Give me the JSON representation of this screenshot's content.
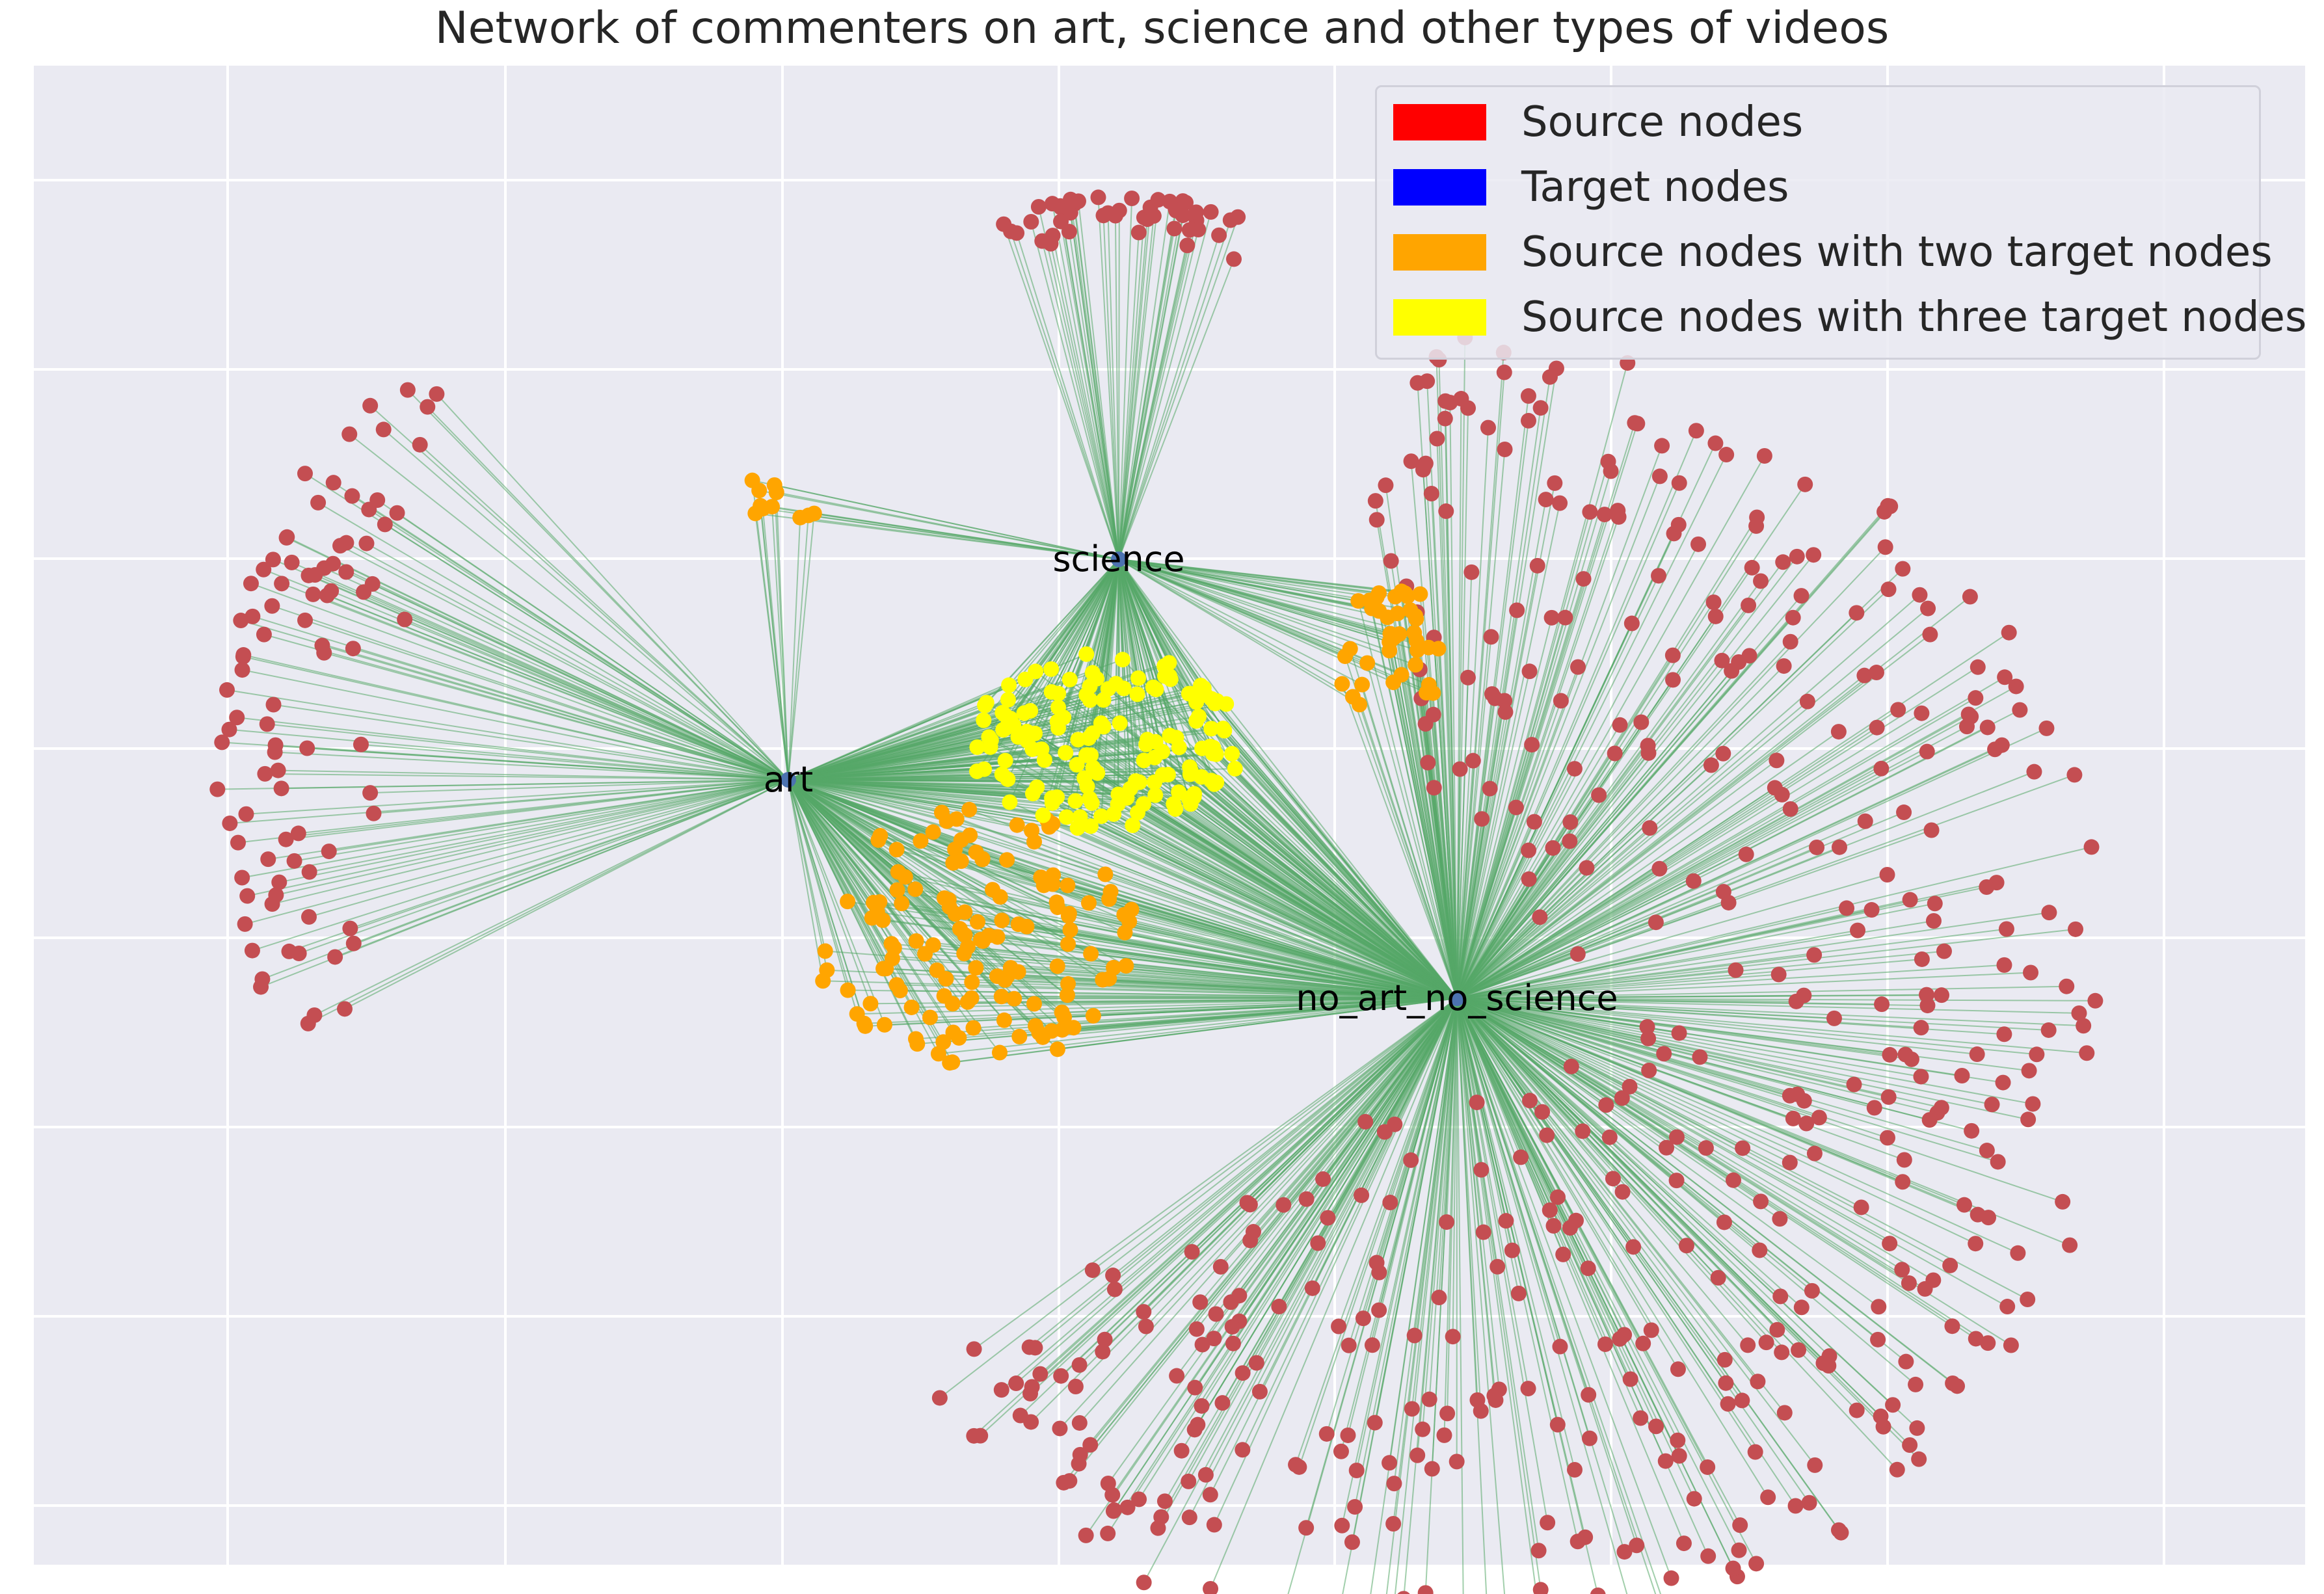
{
  "title": "Network of commenters on art, science and other types of videos",
  "colors": {
    "background": "#eaeaf2",
    "grid": "#ffffff",
    "edge": "#55a868",
    "source_node": "#c44e52",
    "target_node": "#4c72b0",
    "two_target_node": "#ffa500",
    "three_target_node": "#ffff00"
  },
  "legend": [
    {
      "label": "Source nodes",
      "color": "#ff0000"
    },
    {
      "label": "Target nodes",
      "color": "#0000ff"
    },
    {
      "label": "Source nodes with two target nodes",
      "color": "#ffa500"
    },
    {
      "label": "Source nodes with three target nodes",
      "color": "#ffff00"
    }
  ],
  "target_nodes": [
    {
      "id": "art",
      "label": "art"
    },
    {
      "id": "science",
      "label": "science"
    },
    {
      "id": "no_art_no_science",
      "label": "no_art_no_science"
    }
  ],
  "node_groups": [
    {
      "name": "art only",
      "targets": [
        "art"
      ],
      "category": "source",
      "count": 90
    },
    {
      "name": "science only",
      "targets": [
        "science"
      ],
      "category": "source",
      "count": 48
    },
    {
      "name": "no_art_no_science only",
      "targets": [
        "no_art_no_science"
      ],
      "category": "source",
      "count": 520
    },
    {
      "name": "art + science",
      "targets": [
        "art",
        "science"
      ],
      "category": "two_targets",
      "count": 11
    },
    {
      "name": "science + no_art_no_science",
      "targets": [
        "science",
        "no_art_no_science"
      ],
      "category": "two_targets",
      "count": 40
    },
    {
      "name": "art + no_art_no_science",
      "targets": [
        "art",
        "no_art_no_science"
      ],
      "category": "two_targets",
      "count": 140
    },
    {
      "name": "art + science + no_art_no_science",
      "targets": [
        "art",
        "science",
        "no_art_no_science"
      ],
      "category": "three_targets",
      "count": 150
    }
  ]
}
